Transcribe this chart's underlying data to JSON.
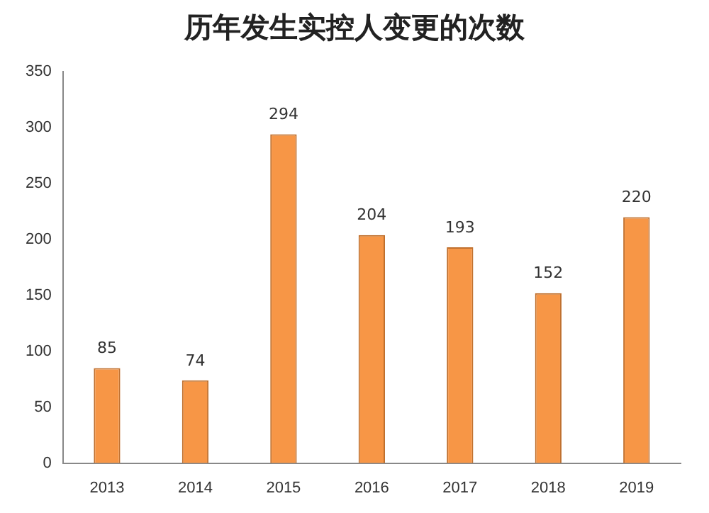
{
  "chart_data": {
    "type": "bar",
    "title": "历年发生实控人变更的次数",
    "categories": [
      "2013",
      "2014",
      "2015",
      "2016",
      "2017",
      "2018",
      "2019"
    ],
    "values": [
      85,
      74,
      294,
      204,
      193,
      152,
      220
    ],
    "color": "#f79646",
    "ylim": [
      0,
      350
    ],
    "yticks": [
      0,
      50,
      100,
      150,
      200,
      250,
      300,
      350
    ],
    "grid": false,
    "data_labels": true
  }
}
